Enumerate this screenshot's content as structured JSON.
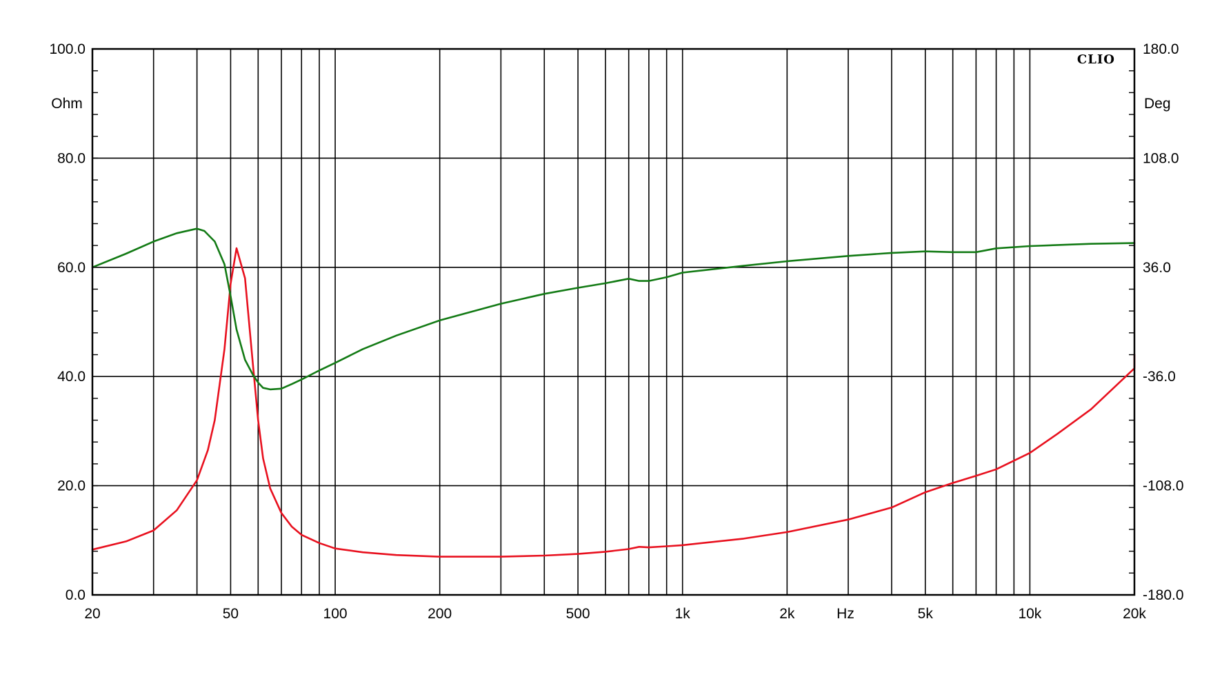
{
  "chart_data": {
    "type": "line",
    "brand": "CLIO",
    "x_scale": "log",
    "xlim": [
      20,
      20000
    ],
    "x_unit": "Hz",
    "x_ticks": [
      {
        "value": 20,
        "label": "20"
      },
      {
        "value": 50,
        "label": "50"
      },
      {
        "value": 100,
        "label": "100"
      },
      {
        "value": 200,
        "label": "200"
      },
      {
        "value": 500,
        "label": "500"
      },
      {
        "value": 1000,
        "label": "1k"
      },
      {
        "value": 2000,
        "label": "2k"
      },
      {
        "value": 5000,
        "label": "5k"
      },
      {
        "value": 10000,
        "label": "10k"
      },
      {
        "value": 20000,
        "label": "20k"
      }
    ],
    "x_grid": [
      20,
      30,
      40,
      50,
      60,
      70,
      80,
      90,
      100,
      200,
      300,
      400,
      500,
      600,
      700,
      800,
      900,
      1000,
      2000,
      3000,
      4000,
      5000,
      6000,
      7000,
      8000,
      9000,
      10000,
      20000
    ],
    "y_left": {
      "unit": "Ohm",
      "ylim": [
        0,
        100
      ],
      "ticks": [
        {
          "value": 0,
          "label": "0.0"
        },
        {
          "value": 20,
          "label": "20.0"
        },
        {
          "value": 40,
          "label": "40.0"
        },
        {
          "value": 60,
          "label": "60.0"
        },
        {
          "value": 80,
          "label": "80.0"
        },
        {
          "value": 100,
          "label": "100.0"
        }
      ]
    },
    "y_right": {
      "unit": "Deg",
      "ylim": [
        -180,
        180
      ],
      "ticks": [
        {
          "value": 180,
          "label": "180.0"
        },
        {
          "value": 108,
          "label": "108.0"
        },
        {
          "value": 36,
          "label": "36.0"
        },
        {
          "value": -36,
          "label": "-36.0"
        },
        {
          "value": -108,
          "label": "-108.0"
        },
        {
          "value": -180,
          "label": "-180.0"
        }
      ]
    },
    "grid": true,
    "series": [
      {
        "axis": "left",
        "color": "#e8101e",
        "x": [
          20,
          25,
          30,
          35,
          40,
          43,
          45,
          48,
          50,
          52,
          55,
          58,
          60,
          62,
          65,
          70,
          75,
          80,
          90,
          100,
          120,
          150,
          200,
          300,
          400,
          500,
          600,
          700,
          750,
          800,
          900,
          1000,
          1500,
          2000,
          3000,
          4000,
          5000,
          6000,
          7000,
          8000,
          10000,
          12000,
          15000,
          20000,
          21000
        ],
        "y": [
          8.3,
          9.8,
          11.8,
          15.5,
          21.0,
          26.5,
          32.0,
          45.0,
          57.0,
          63.5,
          58.0,
          42.0,
          32.0,
          25.0,
          19.5,
          15.0,
          12.5,
          11.0,
          9.5,
          8.5,
          7.8,
          7.3,
          7.0,
          7.0,
          7.2,
          7.5,
          7.9,
          8.4,
          8.8,
          8.7,
          8.9,
          9.1,
          10.3,
          11.5,
          13.8,
          16.0,
          18.8,
          20.5,
          21.8,
          23.0,
          26.0,
          29.5,
          34.0,
          41.5,
          44.0
        ]
      },
      {
        "axis": "right",
        "color": "#127a14",
        "x": [
          20,
          25,
          30,
          35,
          40,
          42,
          45,
          48,
          50,
          52,
          55,
          58,
          60,
          62,
          65,
          70,
          75,
          80,
          90,
          100,
          120,
          150,
          200,
          300,
          400,
          500,
          600,
          700,
          750,
          800,
          900,
          1000,
          1500,
          2000,
          3000,
          4000,
          5000,
          6000,
          7000,
          8000,
          10000,
          15000,
          20000,
          21000
        ],
        "y": [
          36.0,
          45.0,
          53.0,
          58.5,
          61.5,
          60.0,
          53.0,
          38.0,
          17.0,
          -5.0,
          -25.0,
          -35.0,
          -40.0,
          -43.5,
          -44.5,
          -44.0,
          -41.0,
          -38.0,
          -32.0,
          -27.0,
          -18.0,
          -9.0,
          1.0,
          12.0,
          18.5,
          22.5,
          25.5,
          28.5,
          27.0,
          27.0,
          29.5,
          32.5,
          37.0,
          40.0,
          43.5,
          45.5,
          46.5,
          46.0,
          46.0,
          48.5,
          50.0,
          51.5,
          52.0,
          52.0
        ]
      }
    ]
  }
}
